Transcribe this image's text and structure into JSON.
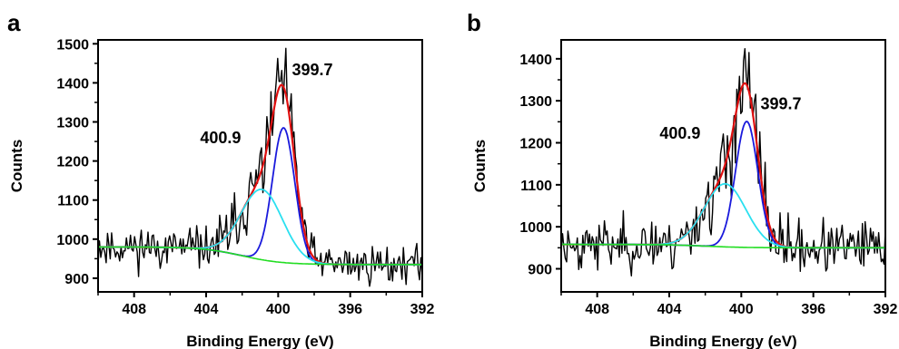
{
  "chart_data": [
    {
      "panel": "a",
      "type": "line",
      "xlabel": "Binding Energy (eV)",
      "ylabel": "Counts",
      "xlim": [
        410,
        392
      ],
      "ylim": [
        865,
        1510
      ],
      "x_ticks": [
        408,
        404,
        400,
        396,
        392
      ],
      "y_ticks": [
        900,
        1000,
        1100,
        1200,
        1300,
        1400,
        1500
      ],
      "grid": false,
      "annotations": [
        {
          "text": "399.7",
          "x": 398.1,
          "y": 1420
        },
        {
          "text": "400.9",
          "x": 403.2,
          "y": 1245
        }
      ],
      "background_start": 980,
      "background_end": 935,
      "peaks": [
        {
          "center": 399.7,
          "height": 345,
          "sigma": 0.62,
          "color": "#1a1adc"
        },
        {
          "center": 400.9,
          "height": 180,
          "sigma": 1.15,
          "color": "#2ae0f0"
        }
      ],
      "noise_sd": 25,
      "seed": 11,
      "series": [
        {
          "kind": "raw",
          "color": "#000000"
        },
        {
          "kind": "fit",
          "color": "#e01010"
        },
        {
          "kind": "component",
          "peak": 0,
          "color": "#1a1adc"
        },
        {
          "kind": "component",
          "peak": 1,
          "color": "#2ae0f0"
        },
        {
          "kind": "background",
          "color": "#22dd22"
        }
      ]
    },
    {
      "panel": "b",
      "type": "line",
      "xlabel": "Binding Energy (eV)",
      "ylabel": "Counts",
      "xlim": [
        410,
        392
      ],
      "ylim": [
        845,
        1445
      ],
      "x_ticks": [
        408,
        404,
        400,
        396,
        392
      ],
      "y_ticks": [
        900,
        1000,
        1100,
        1200,
        1300,
        1400
      ],
      "grid": false,
      "annotations": [
        {
          "text": "399.7",
          "x": 397.8,
          "y": 1280
        },
        {
          "text": "400.9",
          "x": 403.4,
          "y": 1210
        }
      ],
      "background_start": 958,
      "background_end": 950,
      "peaks": [
        {
          "center": 399.7,
          "height": 300,
          "sigma": 0.62,
          "color": "#1a1adc"
        },
        {
          "center": 400.9,
          "height": 150,
          "sigma": 1.15,
          "color": "#2ae0f0"
        }
      ],
      "noise_sd": 30,
      "seed": 23,
      "series": [
        {
          "kind": "raw",
          "color": "#000000"
        },
        {
          "kind": "fit",
          "color": "#e01010"
        },
        {
          "kind": "component",
          "peak": 0,
          "color": "#1a1adc"
        },
        {
          "kind": "component",
          "peak": 1,
          "color": "#2ae0f0"
        },
        {
          "kind": "background",
          "color": "#22dd22"
        }
      ]
    }
  ]
}
